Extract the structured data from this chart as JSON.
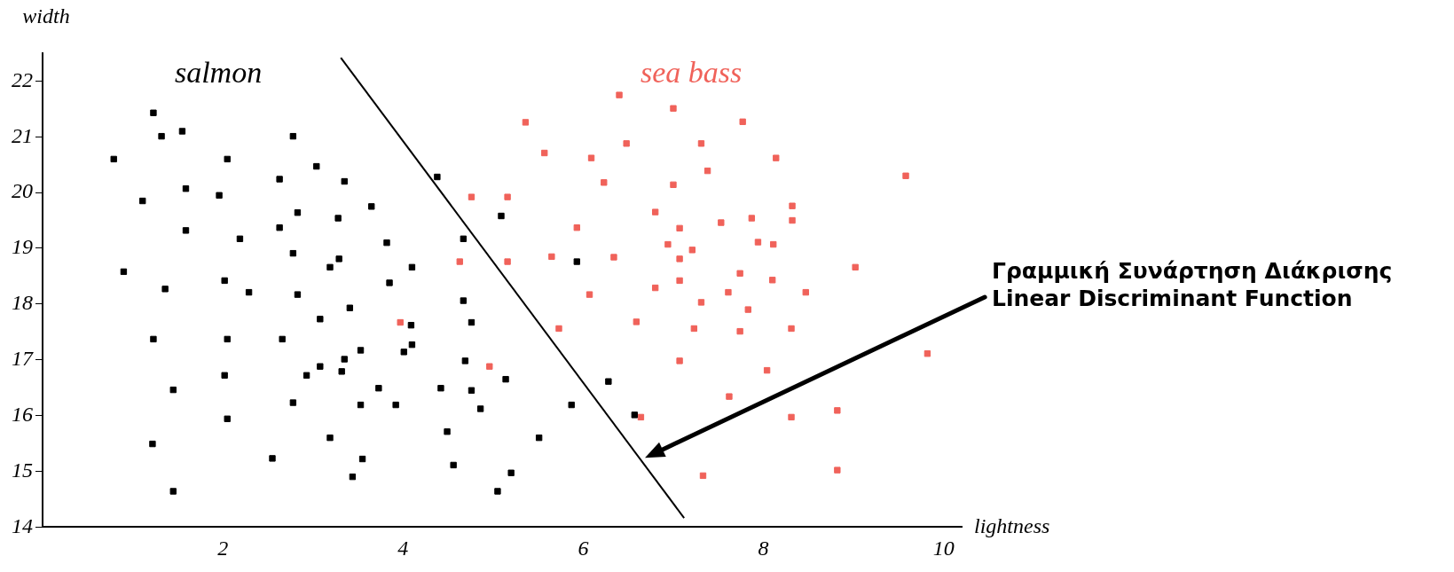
{
  "chart_data": {
    "type": "scatter",
    "xlabel": "lightness",
    "ylabel": "width",
    "xlim": [
      0,
      10.2
    ],
    "xticks": [
      2,
      4,
      6,
      8,
      10
    ],
    "ylim": [
      14,
      22.5
    ],
    "yticks": [
      14,
      15,
      16,
      17,
      18,
      19,
      20,
      21,
      22
    ],
    "marker": "square",
    "legend": false,
    "annotations": [
      "Γραμμική Συνάρτηση Διάκρισης\nLinear Discriminant Function"
    ],
    "series": [
      {
        "name": "salmon",
        "color": "#000000",
        "x": [
          1.23,
          1.32,
          1.55,
          2.78,
          0.79,
          2.05,
          3.04,
          2.63,
          3.35,
          4.38,
          1.59,
          1.96,
          1.11,
          3.65,
          5.09,
          2.83,
          3.28,
          1.59,
          2.63,
          2.19,
          3.82,
          4.67,
          2.78,
          3.29,
          3.19,
          4.1,
          0.9,
          3.85,
          1.36,
          2.02,
          2.29,
          2.83,
          3.41,
          4.67,
          5.93,
          3.08,
          4.76,
          4.09,
          1.23,
          2.05,
          2.66,
          4.1,
          3.53,
          4.01,
          3.35,
          4.69,
          3.08,
          3.32,
          2.93,
          2.02,
          5.14,
          3.73,
          4.42,
          4.76,
          1.45,
          2.78,
          3.53,
          3.92,
          4.86,
          2.05,
          4.49,
          5.51,
          3.19,
          1.22,
          2.55,
          3.55,
          4.56,
          5.2,
          3.44,
          5.05,
          1.45,
          6.28,
          5.87,
          6.57
        ],
        "values": [
          21.43,
          21.01,
          21.1,
          21.01,
          20.6,
          20.6,
          20.47,
          20.24,
          20.2,
          20.28,
          20.07,
          19.95,
          19.85,
          19.75,
          19.58,
          19.64,
          19.54,
          19.32,
          19.37,
          19.17,
          19.1,
          19.17,
          18.91,
          18.81,
          18.66,
          18.66,
          18.58,
          18.38,
          18.27,
          18.42,
          18.21,
          18.17,
          17.93,
          18.06,
          18.76,
          17.73,
          17.67,
          17.62,
          17.37,
          17.37,
          17.37,
          17.27,
          17.17,
          17.14,
          17.01,
          16.98,
          16.88,
          16.79,
          16.72,
          16.72,
          16.65,
          16.49,
          16.49,
          16.45,
          16.46,
          16.23,
          16.19,
          16.19,
          16.12,
          15.94,
          15.71,
          15.6,
          15.6,
          15.49,
          15.23,
          15.22,
          15.11,
          14.97,
          14.9,
          14.64,
          14.64,
          16.61,
          16.19,
          16.01
        ]
      },
      {
        "name": "sea bass",
        "color": "#f0625a",
        "x": [
          5.36,
          4.76,
          5.16,
          4.63,
          5.16,
          3.97,
          4.96,
          6.4,
          7.0,
          7.77,
          6.48,
          7.31,
          5.57,
          6.09,
          8.14,
          7.38,
          6.23,
          7.0,
          9.58,
          8.32,
          8.32,
          6.8,
          7.87,
          7.53,
          5.93,
          7.07,
          7.94,
          8.11,
          6.94,
          7.21,
          7.07,
          5.65,
          6.34,
          9.02,
          7.74,
          7.07,
          8.1,
          6.8,
          7.61,
          8.47,
          6.07,
          7.31,
          7.83,
          6.59,
          5.73,
          7.23,
          7.74,
          8.31,
          7.07,
          9.82,
          8.04,
          7.62,
          8.82,
          8.31,
          6.64,
          7.33,
          8.82
        ],
        "values": [
          21.26,
          19.92,
          19.92,
          18.76,
          18.76,
          17.67,
          16.88,
          21.75,
          21.51,
          21.27,
          20.88,
          20.88,
          20.71,
          20.62,
          20.62,
          20.39,
          20.18,
          20.14,
          20.3,
          19.76,
          19.5,
          19.65,
          19.54,
          19.46,
          19.37,
          19.36,
          19.11,
          19.07,
          19.07,
          18.97,
          18.81,
          18.85,
          18.84,
          18.66,
          18.55,
          18.42,
          18.43,
          18.29,
          18.21,
          18.21,
          18.17,
          18.03,
          17.9,
          17.68,
          17.56,
          17.56,
          17.51,
          17.56,
          16.98,
          17.11,
          16.81,
          16.34,
          16.09,
          15.97,
          15.97,
          14.92,
          15.02
        ]
      },
      {
        "type": "line",
        "color": "#000000",
        "marker": "none",
        "x": [
          3.31,
          7.12
        ],
        "values": [
          22.42,
          14.16
        ]
      }
    ]
  }
}
